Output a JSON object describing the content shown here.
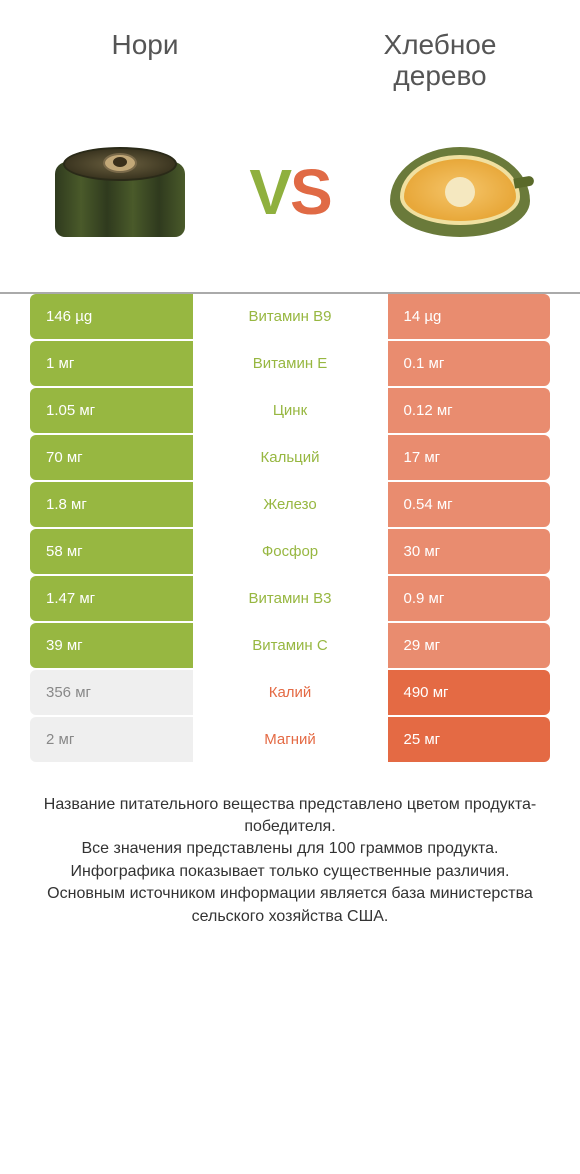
{
  "colors": {
    "green": "#97b741",
    "orange": "#e46a44",
    "orange_light": "#e98c6f",
    "light_bg": "#efefef"
  },
  "left_title": "Нори",
  "right_title": "Хлебное\nдерево",
  "vs_v": "V",
  "vs_s": "S",
  "rows": [
    {
      "left": "146 µg",
      "center": "Витамин B9",
      "right": "14 µg",
      "winner": "left"
    },
    {
      "left": "1 мг",
      "center": "Витамин E",
      "right": "0.1 мг",
      "winner": "left"
    },
    {
      "left": "1.05 мг",
      "center": "Цинк",
      "right": "0.12 мг",
      "winner": "left"
    },
    {
      "left": "70 мг",
      "center": "Кальций",
      "right": "17 мг",
      "winner": "left"
    },
    {
      "left": "1.8 мг",
      "center": "Железо",
      "right": "0.54 мг",
      "winner": "left"
    },
    {
      "left": "58 мг",
      "center": "Фосфор",
      "right": "30 мг",
      "winner": "left"
    },
    {
      "left": "1.47 мг",
      "center": "Витамин B3",
      "right": "0.9 мг",
      "winner": "left"
    },
    {
      "left": "39 мг",
      "center": "Витамин C",
      "right": "29 мг",
      "winner": "left"
    },
    {
      "left": "356 мг",
      "center": "Калий",
      "right": "490 мг",
      "winner": "right"
    },
    {
      "left": "2 мг",
      "center": "Магний",
      "right": "25 мг",
      "winner": "right"
    }
  ],
  "footer_lines": [
    "Название питательного вещества представлено цветом продукта-победителя.",
    "Все значения представлены для 100 граммов продукта.",
    "Инфографика показывает только существенные различия.",
    "Основным источником информации является база министерства сельского хозяйства США."
  ]
}
